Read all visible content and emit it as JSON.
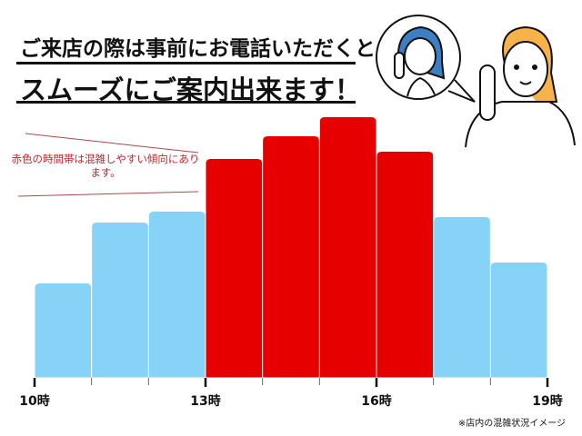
{
  "header": {
    "line1": "ご来店の際は事前にお電話いただくと",
    "line2": "スムーズにご案内出来ます！"
  },
  "annotation": "赤色の時間帯は混雑しやすい傾向にあります。",
  "footnote": "※店内の混雑状況イメージ",
  "illustration": "woman-on-phone-with-speech-bubble-of-staff-on-phone",
  "chart_data": {
    "type": "bar",
    "categories": [
      "10時",
      "11時",
      "12時",
      "13時",
      "14時",
      "15時",
      "16時",
      "17時",
      "18時"
    ],
    "values": [
      104,
      171,
      183,
      241,
      266,
      287,
      249,
      177,
      127
    ],
    "busy": [
      false,
      false,
      false,
      true,
      true,
      true,
      true,
      false,
      false
    ],
    "tick_labels": [
      "10時",
      "13時",
      "16時",
      "19時"
    ],
    "xlim": [
      10,
      19
    ],
    "ylim": [
      0,
      300
    ],
    "y_axis_shown": false,
    "grid": false,
    "colors": {
      "normal": "#87d3f7",
      "busy": "#e60000"
    }
  }
}
